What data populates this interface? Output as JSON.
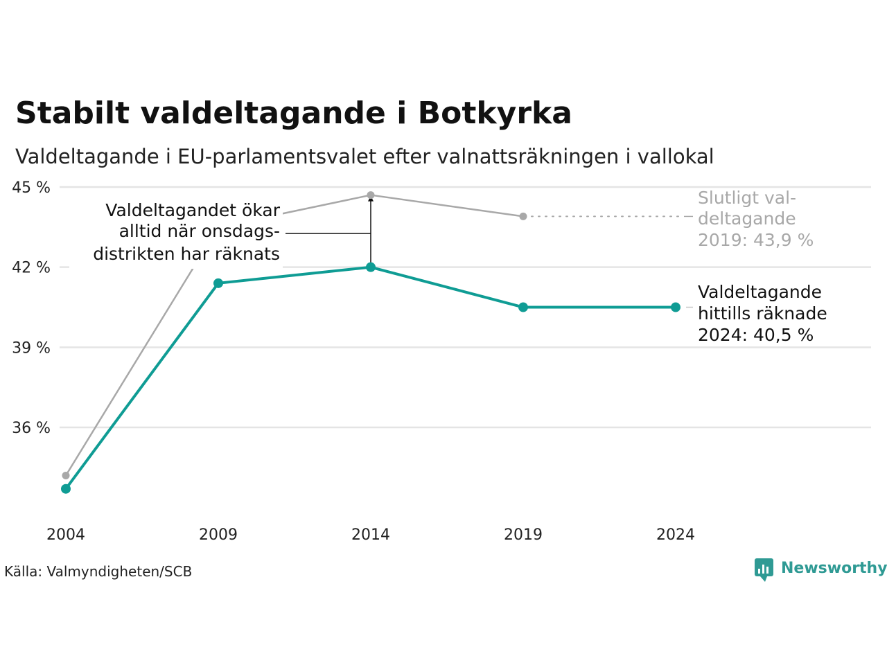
{
  "chart_data": {
    "type": "line",
    "title": "Stabilt valdeltagande i Botkyrka",
    "subtitle": "Valdeltagande i EU-parlamentsvalet efter valnattsräkningen i vallokal",
    "x": [
      2004,
      2009,
      2014,
      2019,
      2024
    ],
    "x_tick_labels": [
      "2004",
      "2009",
      "2014",
      "2019",
      "2024"
    ],
    "y_ticks": [
      36,
      39,
      42,
      45
    ],
    "y_tick_labels": [
      "36 %",
      "39 %",
      "42 %",
      "45 %"
    ],
    "ylim": [
      33.2,
      45.0
    ],
    "grid": true,
    "series": [
      {
        "key": "final",
        "color": "#a8a8a8",
        "x": [
          2004,
          2009,
          2014,
          2019
        ],
        "values": [
          34.2,
          43.5,
          44.7,
          43.9
        ]
      },
      {
        "key": "counted",
        "color": "#0f9c94",
        "x": [
          2004,
          2009,
          2014,
          2019,
          2024
        ],
        "values": [
          33.7,
          41.4,
          42.0,
          40.5,
          40.5
        ]
      }
    ],
    "annotations": {
      "note_lines": [
        "Valdeltagandet ökar",
        "alltid när onsdags-",
        "distrikten har räknats"
      ],
      "final_label_lines": [
        "Slutligt val-",
        "deltagande",
        "2019: 43,9 %"
      ],
      "counted_label_lines": [
        "Valdeltagande",
        "hittills räknade",
        "2024: 40,5 %"
      ]
    },
    "colors": {
      "final": "#a8a8a8",
      "counted": "#0f9c94",
      "grid": "#e4e4e4",
      "brand": "#2f9a94"
    }
  },
  "source": "Källa: Valmyndigheten/SCB",
  "brand": {
    "name": "Newsworthy",
    "icon": "newsworthy-logo-icon"
  }
}
